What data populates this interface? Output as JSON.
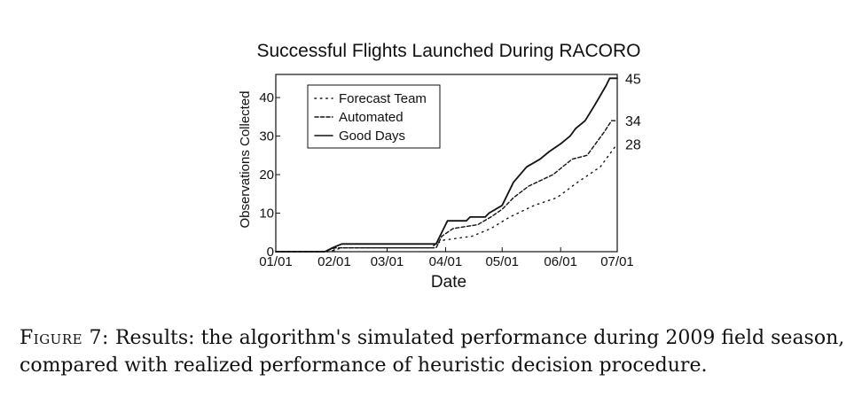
{
  "chart_data": {
    "type": "line",
    "title": "Successful Flights Launched During RACORO",
    "xlabel": "Date",
    "ylabel": "Observations Collected",
    "x_tick_labels": [
      "01/01",
      "02/01",
      "03/01",
      "04/01",
      "05/01",
      "06/01",
      "07/01"
    ],
    "y_tick_labels": [
      "0",
      "10",
      "20",
      "30",
      "40"
    ],
    "y_ticks": [
      0,
      10,
      20,
      30,
      40
    ],
    "xlim": [
      "2009-01-01",
      "2009-07-01"
    ],
    "ylim": [
      0,
      46
    ],
    "grid": false,
    "legend_position": "top-left",
    "series": [
      {
        "name": "Forecast Team",
        "style": "dotted",
        "end_label": "28",
        "points": [
          [
            "2009-01-01",
            0
          ],
          [
            "2009-01-29",
            0
          ],
          [
            "2009-02-05",
            1
          ],
          [
            "2009-03-24",
            1
          ],
          [
            "2009-03-27",
            2
          ],
          [
            "2009-03-31",
            3
          ],
          [
            "2009-04-15",
            4
          ],
          [
            "2009-04-25",
            6
          ],
          [
            "2009-05-05",
            9
          ],
          [
            "2009-05-18",
            12
          ],
          [
            "2009-05-30",
            14
          ],
          [
            "2009-06-10",
            18
          ],
          [
            "2009-06-22",
            22
          ],
          [
            "2009-06-28",
            26
          ],
          [
            "2009-07-01",
            28
          ]
        ]
      },
      {
        "name": "Automated",
        "style": "dashed",
        "end_label": "34",
        "points": [
          [
            "2009-01-01",
            0
          ],
          [
            "2009-01-27",
            0
          ],
          [
            "2009-02-01",
            1
          ],
          [
            "2009-02-28",
            1
          ],
          [
            "2009-03-27",
            1
          ],
          [
            "2009-03-30",
            4
          ],
          [
            "2009-04-05",
            6
          ],
          [
            "2009-04-18",
            7
          ],
          [
            "2009-04-25",
            9
          ],
          [
            "2009-05-01",
            11
          ],
          [
            "2009-05-07",
            14
          ],
          [
            "2009-05-15",
            17
          ],
          [
            "2009-05-28",
            20
          ],
          [
            "2009-06-07",
            24
          ],
          [
            "2009-06-15",
            25
          ],
          [
            "2009-06-24",
            31
          ],
          [
            "2009-06-28",
            34
          ],
          [
            "2009-07-01",
            34
          ]
        ]
      },
      {
        "name": "Good Days",
        "style": "solid",
        "end_label": "45",
        "points": [
          [
            "2009-01-01",
            0
          ],
          [
            "2009-01-27",
            0
          ],
          [
            "2009-01-31",
            1
          ],
          [
            "2009-02-05",
            2
          ],
          [
            "2009-03-27",
            2
          ],
          [
            "2009-03-31",
            6
          ],
          [
            "2009-04-02",
            8
          ],
          [
            "2009-04-12",
            8
          ],
          [
            "2009-04-14",
            9
          ],
          [
            "2009-04-22",
            9
          ],
          [
            "2009-04-24",
            10
          ],
          [
            "2009-05-01",
            12
          ],
          [
            "2009-05-07",
            18
          ],
          [
            "2009-05-14",
            22
          ],
          [
            "2009-05-21",
            24
          ],
          [
            "2009-05-26",
            26
          ],
          [
            "2009-06-01",
            28
          ],
          [
            "2009-06-06",
            30
          ],
          [
            "2009-06-09",
            32
          ],
          [
            "2009-06-14",
            34
          ],
          [
            "2009-06-19",
            38
          ],
          [
            "2009-06-25",
            43
          ],
          [
            "2009-06-27",
            45
          ],
          [
            "2009-07-01",
            45
          ]
        ]
      }
    ]
  },
  "caption": {
    "label": "Figure 7:",
    "text": "Results: the algorithm's simulated performance during 2009 field season, compared with realized performance of heuristic decision procedure."
  }
}
